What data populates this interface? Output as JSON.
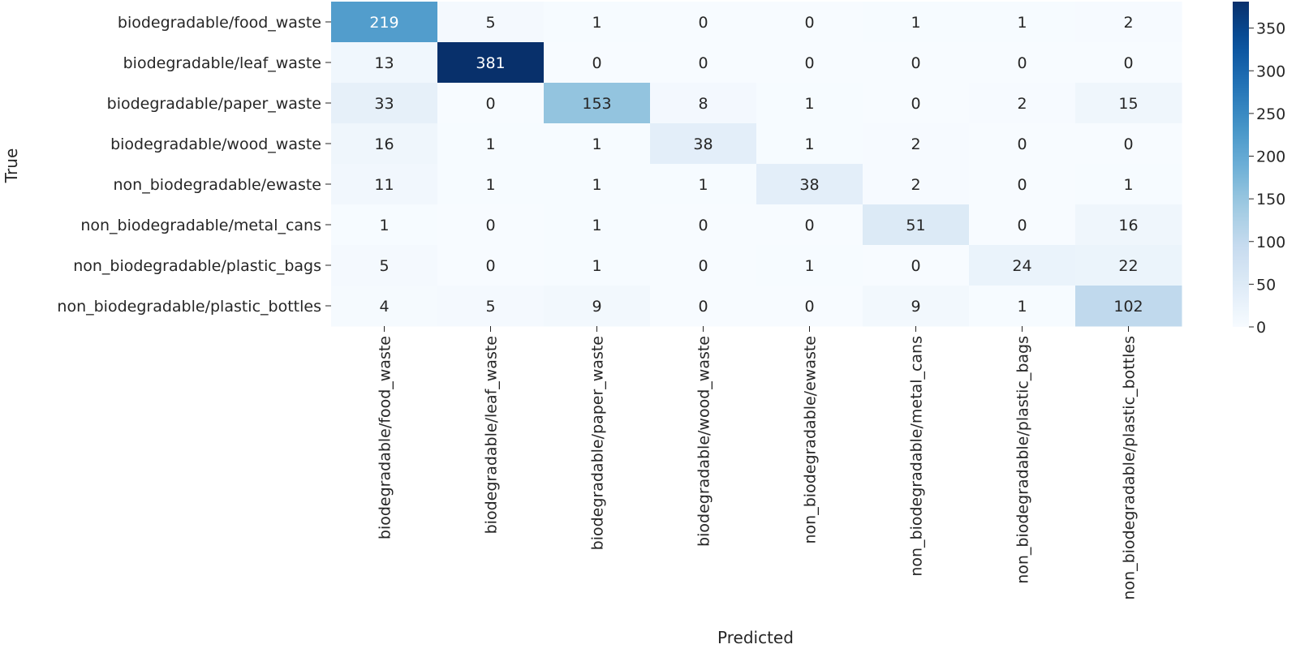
{
  "chart_data": {
    "type": "heatmap",
    "title": "",
    "xlabel": "Predicted",
    "ylabel": "True",
    "row_labels": [
      "biodegradable/food_waste",
      "biodegradable/leaf_waste",
      "biodegradable/paper_waste",
      "biodegradable/wood_waste",
      "non_biodegradable/ewaste",
      "non_biodegradable/metal_cans",
      "non_biodegradable/plastic_bags",
      "non_biodegradable/plastic_bottles"
    ],
    "col_labels": [
      "biodegradable/food_waste",
      "biodegradable/leaf_waste",
      "biodegradable/paper_waste",
      "biodegradable/wood_waste",
      "non_biodegradable/ewaste",
      "non_biodegradable/metal_cans",
      "non_biodegradable/plastic_bags",
      "non_biodegradable/plastic_bottles"
    ],
    "values": [
      [
        219,
        5,
        1,
        0,
        0,
        1,
        1,
        2
      ],
      [
        13,
        381,
        0,
        0,
        0,
        0,
        0,
        0
      ],
      [
        33,
        0,
        153,
        8,
        1,
        0,
        2,
        15
      ],
      [
        16,
        1,
        1,
        38,
        1,
        2,
        0,
        0
      ],
      [
        11,
        1,
        1,
        1,
        38,
        2,
        0,
        1
      ],
      [
        1,
        0,
        1,
        0,
        0,
        51,
        0,
        16
      ],
      [
        5,
        0,
        1,
        0,
        1,
        0,
        24,
        22
      ],
      [
        4,
        5,
        9,
        0,
        0,
        9,
        1,
        102
      ]
    ],
    "colormap": "Blues",
    "colorbar": {
      "range": [
        0,
        381
      ],
      "ticks": [
        0,
        50,
        100,
        150,
        200,
        250,
        300,
        350
      ],
      "tick_labels": [
        "0",
        "50",
        "100",
        "150",
        "200",
        "250",
        "300",
        "350"
      ]
    },
    "annotation_colors": {
      "dark_text": "#262626",
      "light_text": "#ffffff"
    }
  }
}
